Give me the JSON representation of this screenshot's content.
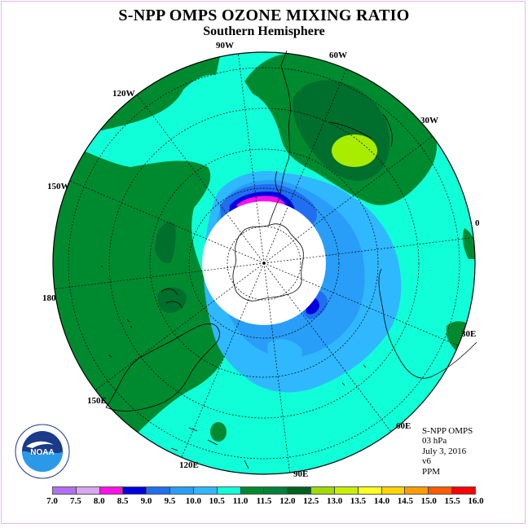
{
  "title": "S-NPP OMPS OZONE MIXING RATIO",
  "subtitle": "Southern Hemisphere",
  "longitude_labels": {
    "lon_90w": "90W",
    "lon_60w": "60W",
    "lon_30w": "30W",
    "lon_120w": "120W",
    "lon_150w": "150W",
    "lon_0": "0",
    "lon_180": "180",
    "lon_30e": "30E",
    "lon_150e": "150E",
    "lon_60e": "60E",
    "lon_120e": "120E",
    "lon_90e": "90E"
  },
  "info": {
    "instrument": "S-NPP OMPS",
    "level": "03 hPa",
    "date": "July 3, 2016",
    "version": "v6",
    "units": "PPM"
  },
  "logo_text": "NOAA",
  "colorbar": {
    "ticks": [
      "7.0",
      "7.5",
      "8.0",
      "8.5",
      "9.0",
      "9.5",
      "10.0",
      "10.5",
      "11.0",
      "11.5",
      "12.0",
      "12.5",
      "13.0",
      "13.5",
      "14.0",
      "14.5",
      "15.0",
      "15.5",
      "16.0"
    ],
    "colors": [
      "#b070f0",
      "#d8a8f0",
      "#ff10e8",
      "#0000e0",
      "#1f6ff0",
      "#289ef8",
      "#30b8ff",
      "#10ffd8",
      "#008a30",
      "#00803a",
      "#006020",
      "#9cdc00",
      "#c8f000",
      "#ffff20",
      "#ffd400",
      "#ff9c00",
      "#ff5a00",
      "#ff0000",
      "#8a5a3a"
    ]
  },
  "colors": {
    "green_dark": "#006e2c",
    "green": "#008a30",
    "cyan": "#10ffd8",
    "light_blue": "#30b8ff",
    "blue": "#289ef8",
    "mid_blue": "#1f6ff0",
    "deep_blue": "#0000e0",
    "magenta": "#ff10e8",
    "lime": "#a8ec00"
  }
}
